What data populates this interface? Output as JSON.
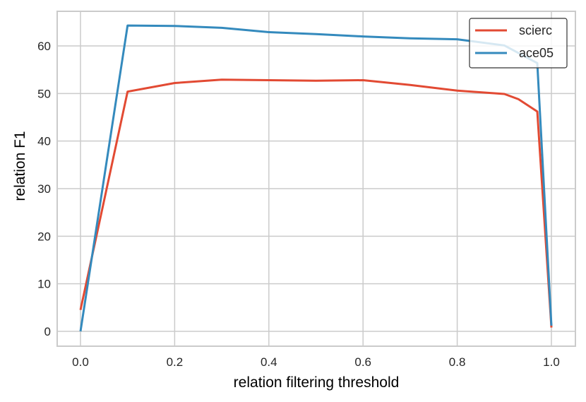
{
  "chart_data": {
    "type": "line",
    "title": "",
    "xlabel": "relation filtering threshold",
    "ylabel": "relation F1",
    "xlim": [
      -0.05,
      1.05
    ],
    "ylim": [
      -3,
      67
    ],
    "xticks": [
      0.0,
      0.2,
      0.4,
      0.6,
      0.8,
      1.0
    ],
    "xtick_labels": [
      "0.0",
      "0.2",
      "0.4",
      "0.6",
      "0.8",
      "1.0"
    ],
    "yticks": [
      0,
      10,
      20,
      30,
      40,
      50,
      60
    ],
    "ytick_labels": [
      "0",
      "10",
      "20",
      "30",
      "40",
      "50",
      "60"
    ],
    "grid": true,
    "legend_position": "upper right",
    "series": [
      {
        "name": "scierc",
        "color": "#E24A33",
        "x": [
          0.0,
          0.1,
          0.2,
          0.3,
          0.4,
          0.5,
          0.6,
          0.7,
          0.8,
          0.9,
          0.93,
          0.97,
          1.0
        ],
        "values": [
          4.5,
          50.4,
          52.2,
          52.9,
          52.8,
          52.7,
          52.8,
          51.8,
          50.6,
          49.9,
          48.8,
          46.2,
          0.8
        ]
      },
      {
        "name": "ace05",
        "color": "#348ABD",
        "x": [
          0.0,
          0.1,
          0.2,
          0.3,
          0.4,
          0.5,
          0.6,
          0.7,
          0.8,
          0.9,
          0.97,
          1.0
        ],
        "values": [
          0.0,
          64.3,
          64.2,
          63.8,
          62.9,
          62.5,
          62.0,
          61.6,
          61.4,
          60.1,
          56.4,
          1.2
        ]
      }
    ]
  },
  "colors": {
    "grid": "#cbcbcb",
    "frame": "#cbcbcb",
    "legend_border": "#333333"
  }
}
